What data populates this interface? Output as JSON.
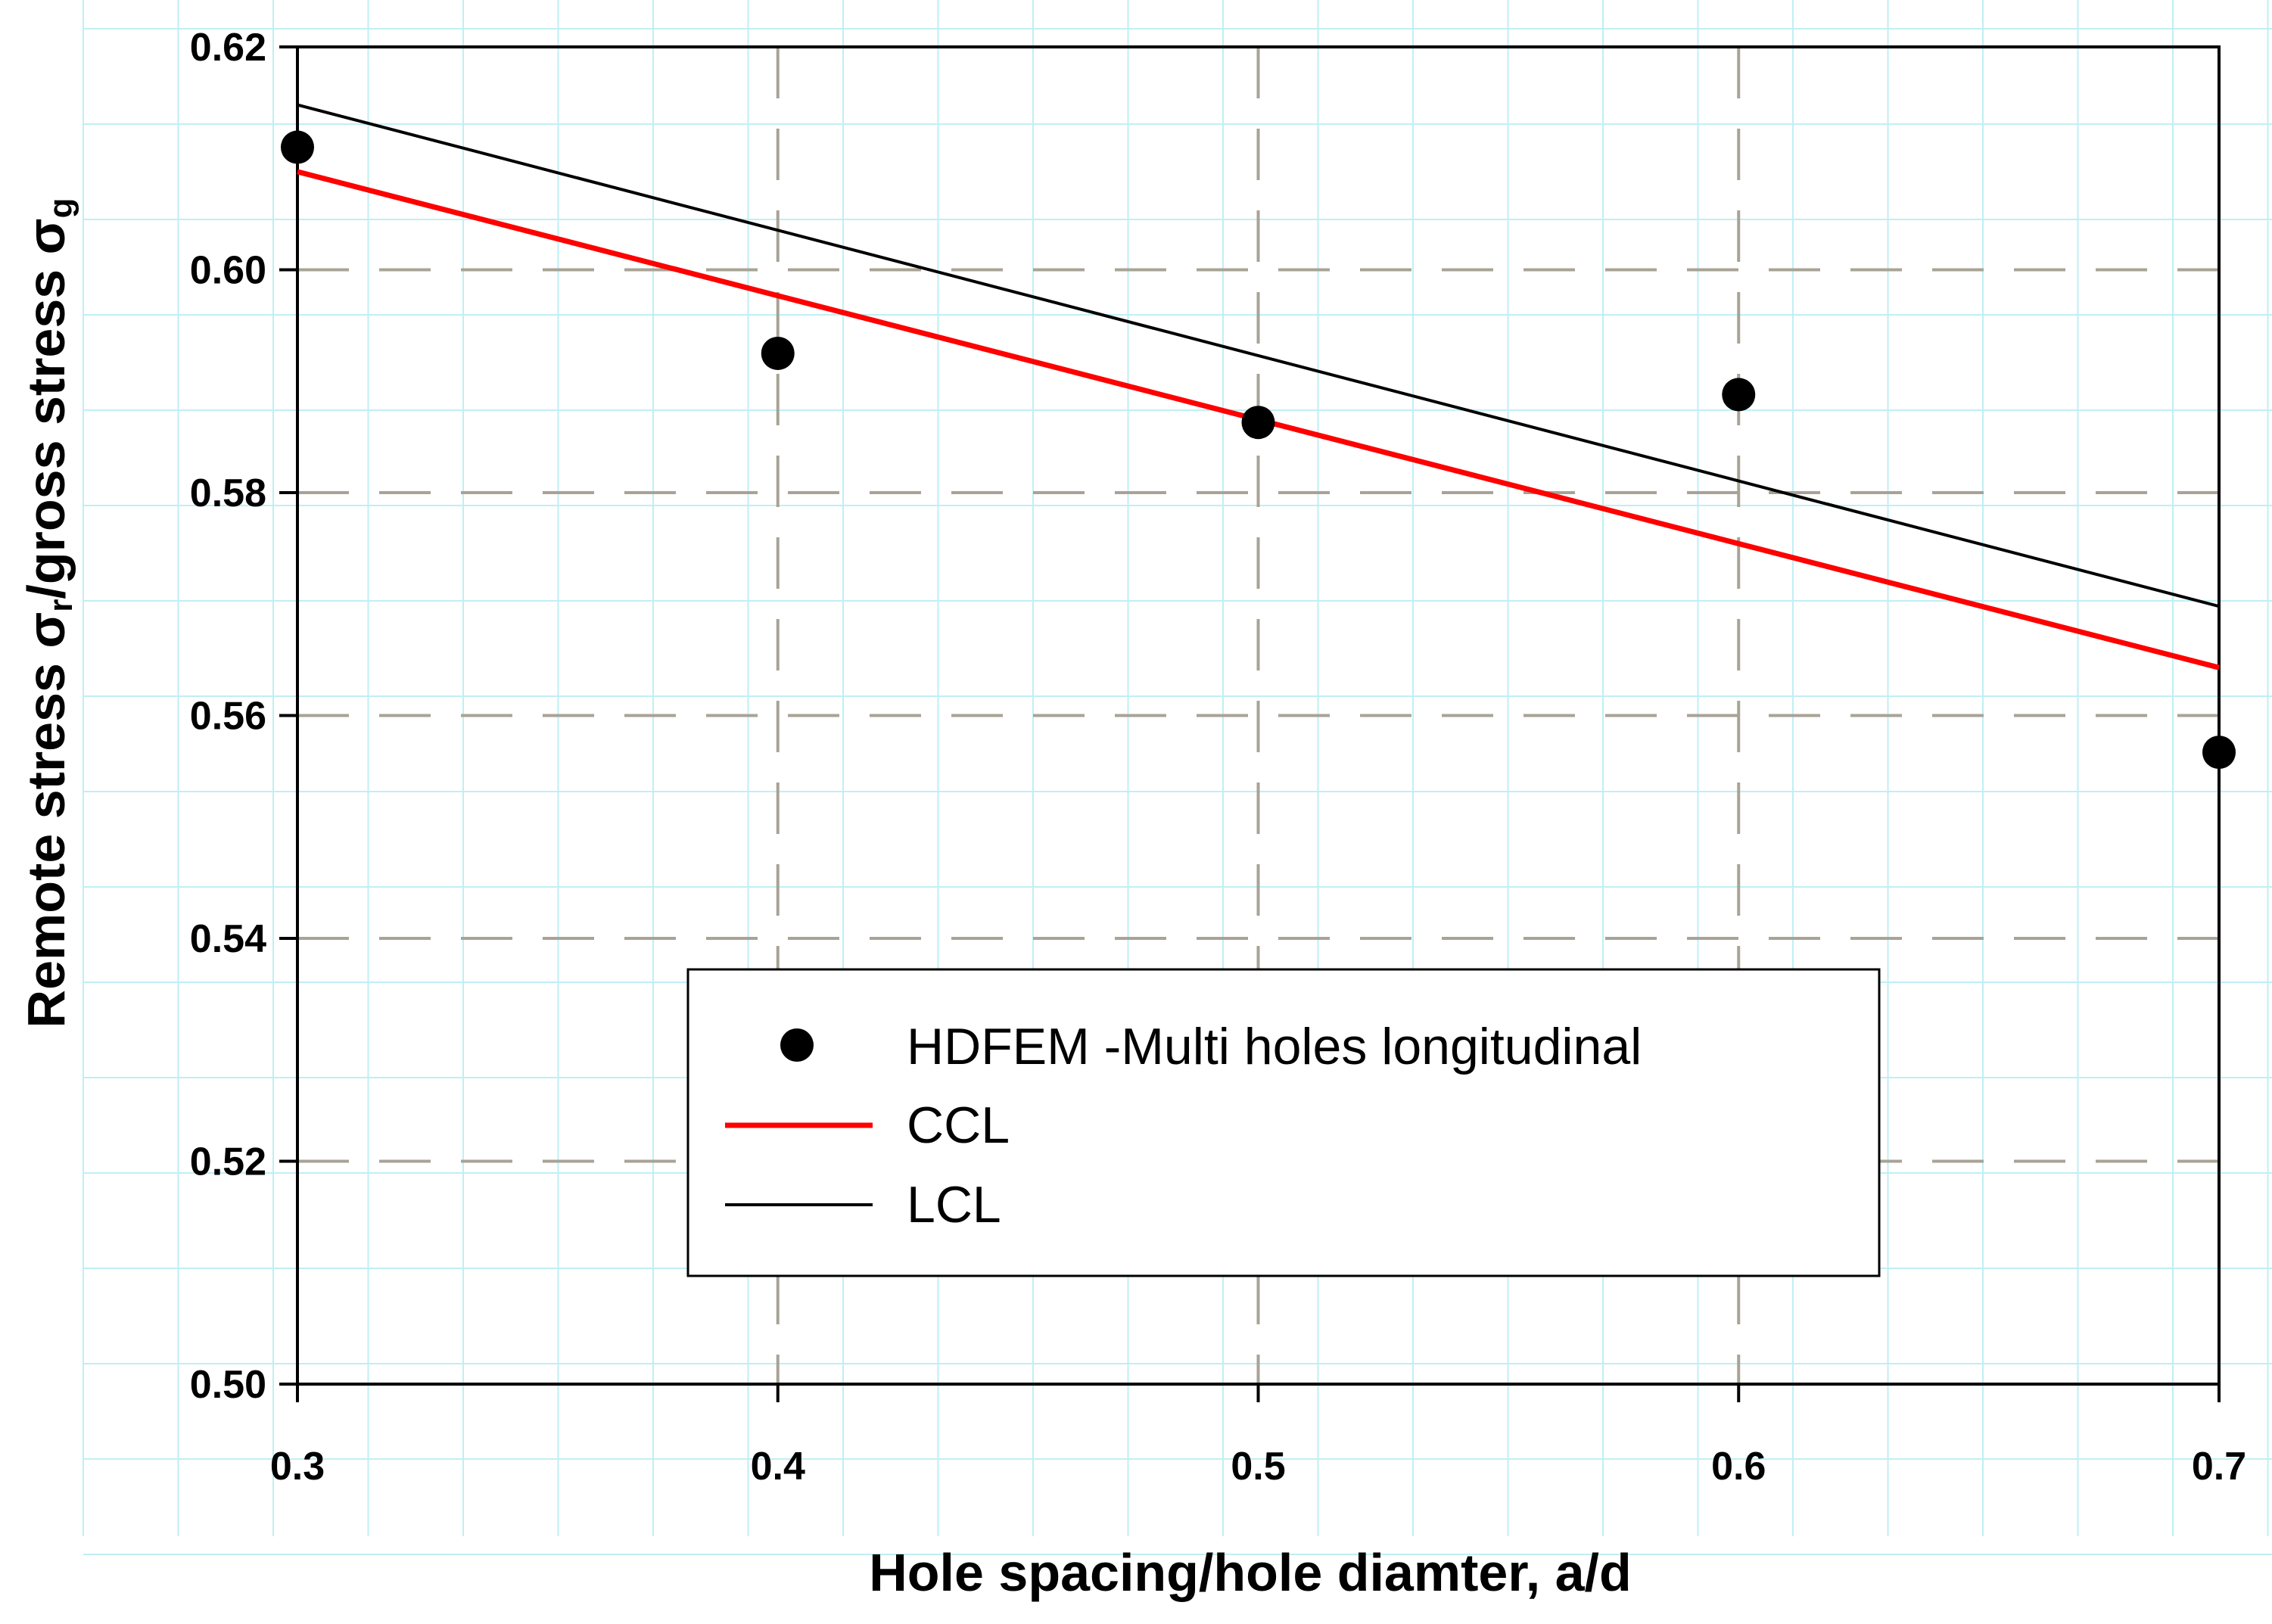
{
  "chart_data": {
    "type": "scatter",
    "title": "",
    "xlabel": "Hole spacing/hole diamter, a/d",
    "ylabel": {
      "prefix": "Remote stress ",
      "sigma_r": "σ",
      "sub_r": "r",
      "middle": "/gross stress ",
      "sigma_g": "σ",
      "sub_g": "g"
    },
    "xlim": [
      0.3,
      0.7
    ],
    "ylim": [
      0.5,
      0.62
    ],
    "x_ticks": [
      0.3,
      0.4,
      0.5,
      0.6,
      0.7
    ],
    "x_tick_labels": [
      "0.3",
      "0.4",
      "0.5",
      "0.6",
      "0.7"
    ],
    "y_ticks": [
      0.5,
      0.52,
      0.54,
      0.56,
      0.58,
      0.6,
      0.62
    ],
    "y_tick_labels": [
      "0.50",
      "0.52",
      "0.54",
      "0.56",
      "0.58",
      "0.60",
      "0.62"
    ],
    "grid": true,
    "legend_position": "lower-center",
    "series": [
      {
        "name": "HDFEM -Multi holes longitudinal",
        "kind": "points",
        "color": "#000000",
        "x": [
          0.3,
          0.4,
          0.5,
          0.6,
          0.7
        ],
        "y": [
          0.611,
          0.5925,
          0.5863,
          0.5888,
          0.5567
        ]
      },
      {
        "name": "CCL",
        "kind": "line",
        "color": "#ff0000",
        "x": [
          0.3,
          0.7
        ],
        "y": [
          0.6088,
          0.5643
        ]
      },
      {
        "name": "LCL",
        "kind": "line",
        "color": "#000000",
        "x": [
          0.3,
          0.7
        ],
        "y": [
          0.6148,
          0.5698
        ]
      }
    ]
  }
}
